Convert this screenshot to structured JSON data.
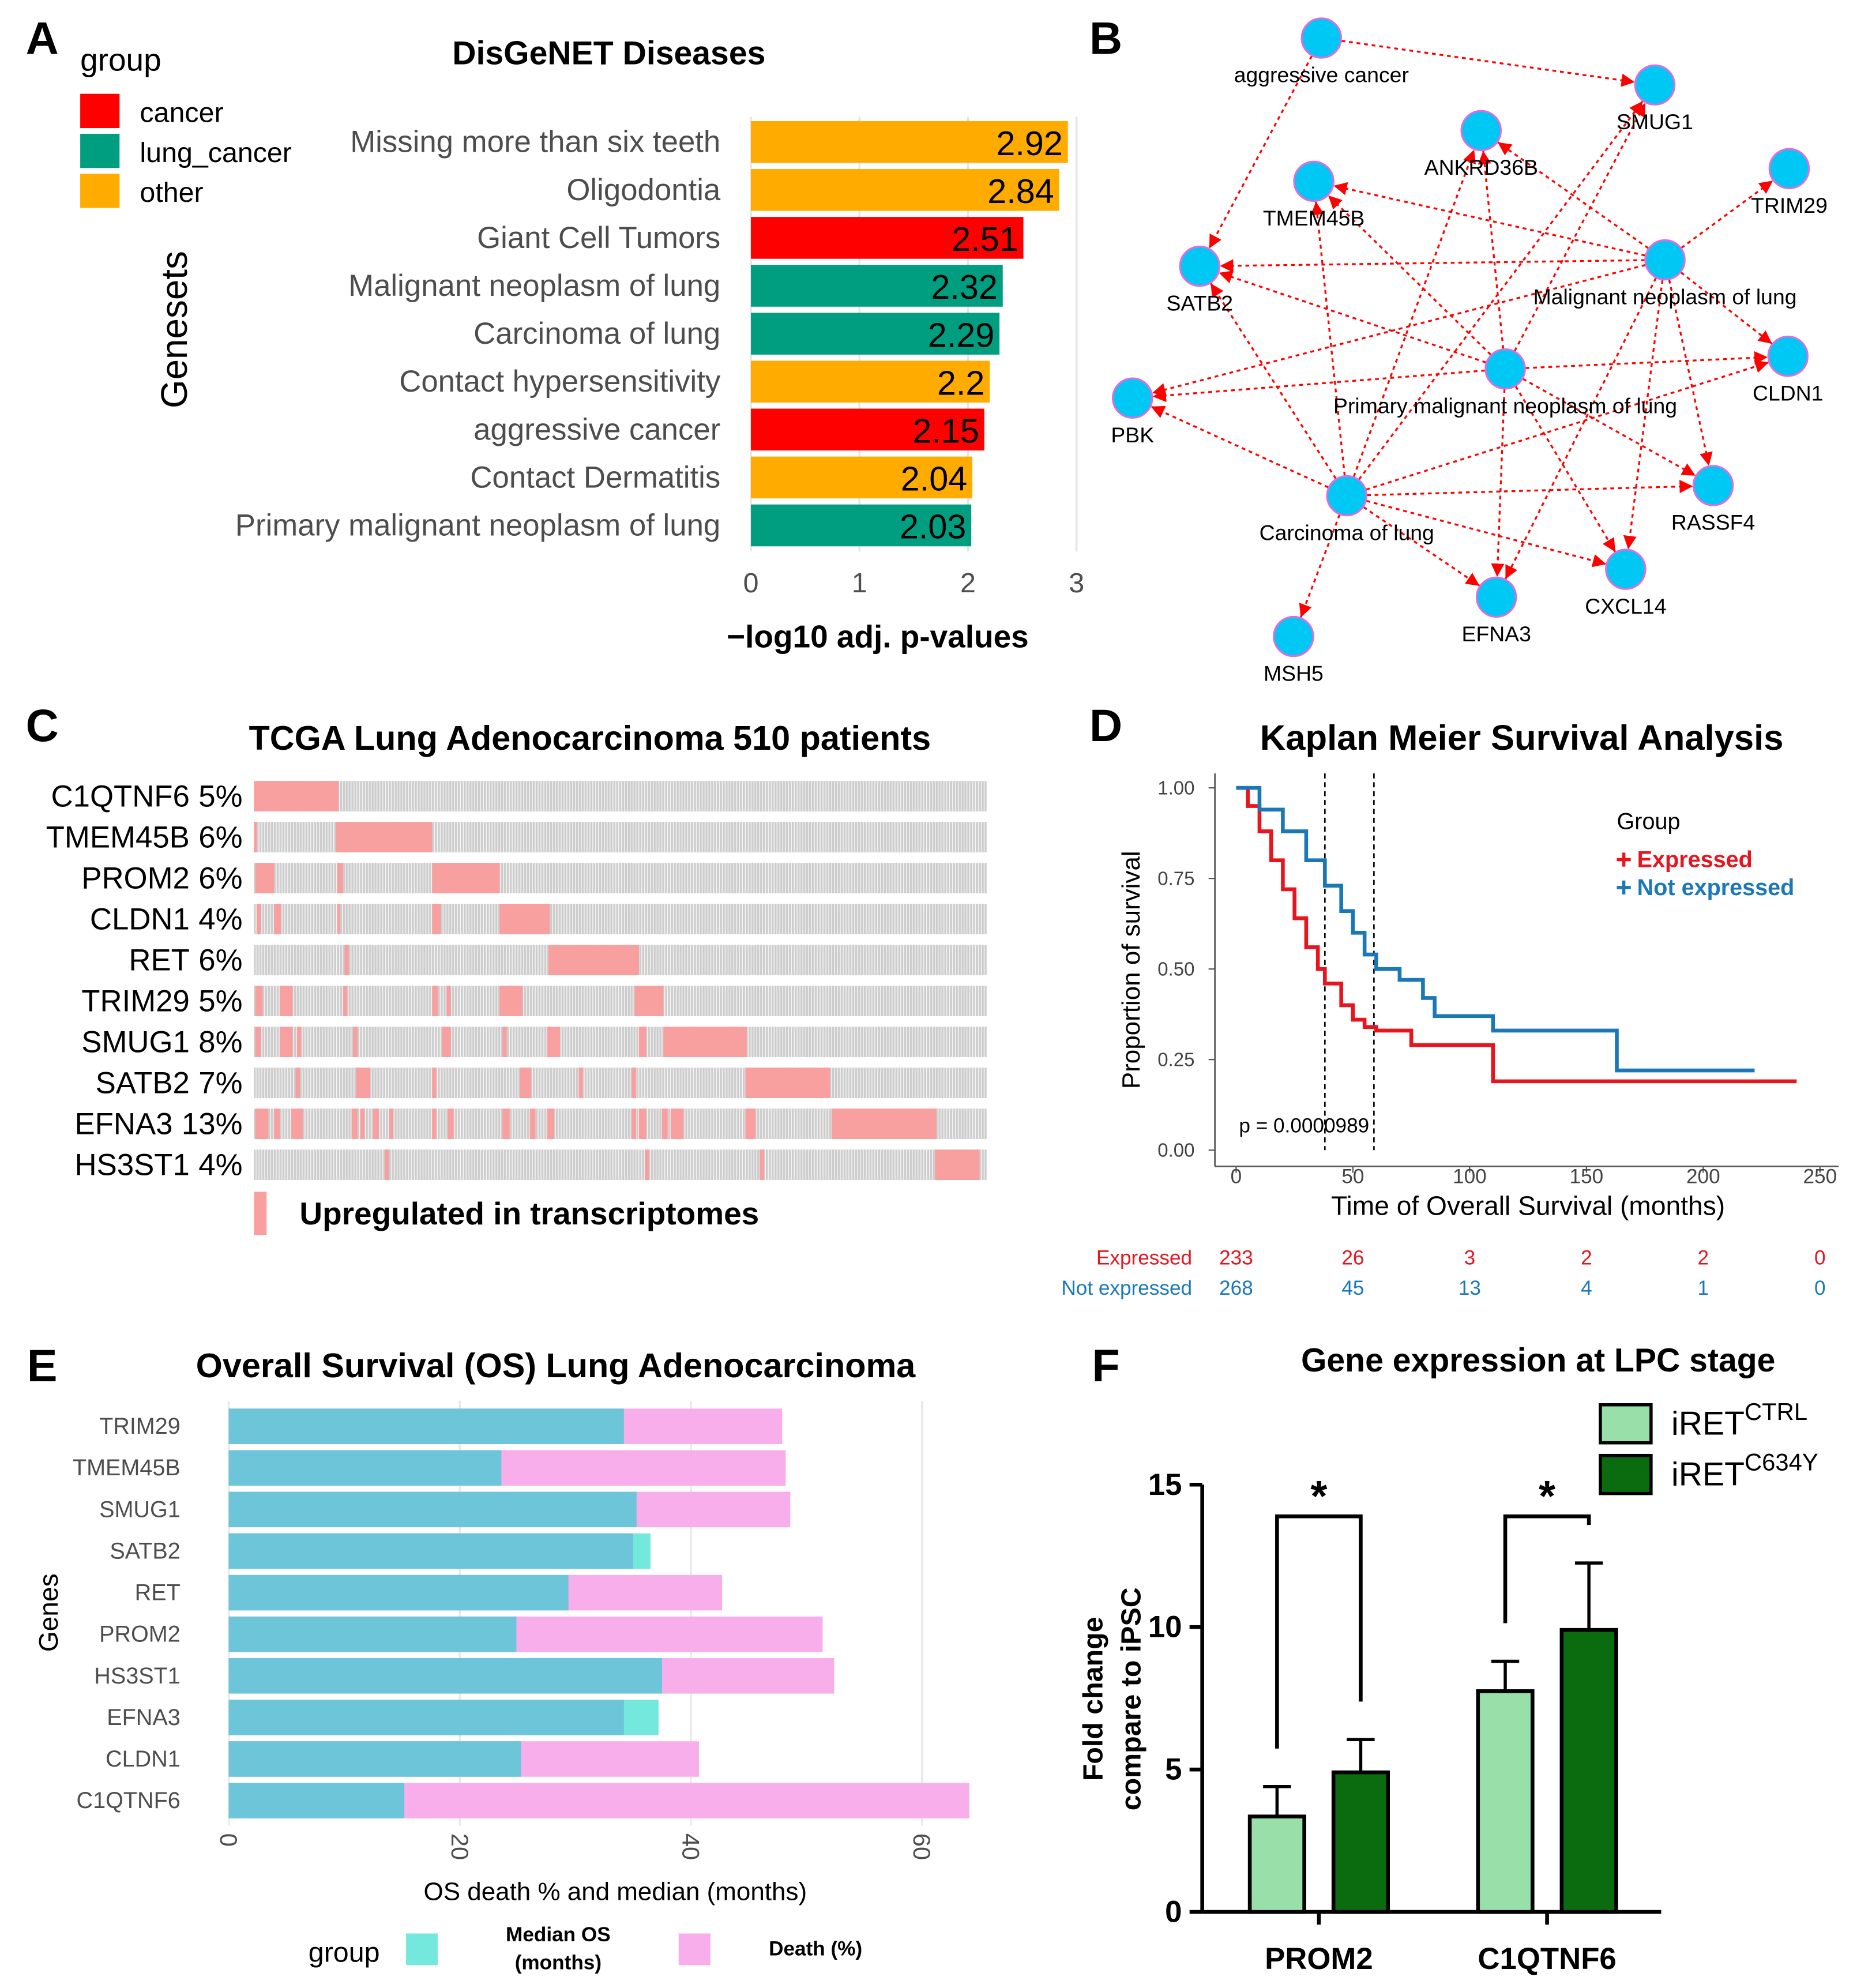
{
  "chart_data": [
    {
      "type": "hbar",
      "panel": "A",
      "title": "DisGeNET Diseases",
      "xlabel": "−log10 adj. p-values",
      "ylabel": "Genesets",
      "legend_title": "group",
      "groups": [
        {
          "name": "cancer",
          "color": "#ff0000"
        },
        {
          "name": "lung_cancer",
          "color": "#009e80"
        },
        {
          "name": "other",
          "color": "#ffab00"
        }
      ],
      "categories": [
        "Missing more than six teeth",
        "Oligodontia",
        "Giant Cell Tumors",
        "Malignant neoplasm of lung",
        "Carcinoma of lung",
        "Contact hypersensitivity",
        "aggressive cancer",
        "Contact Dermatitis",
        "Primary malignant neoplasm of lung"
      ],
      "values": [
        2.92,
        2.84,
        2.51,
        2.32,
        2.29,
        2.2,
        2.15,
        2.04,
        2.03
      ],
      "group": [
        "other",
        "other",
        "cancer",
        "lung_cancer",
        "lung_cancer",
        "other",
        "cancer",
        "other",
        "lung_cancer"
      ],
      "xlim": [
        0,
        3.13
      ],
      "xticks": [
        0,
        1,
        2,
        3
      ],
      "grid": true
    },
    {
      "type": "network",
      "panel": "B",
      "nodes": [
        "aggressive cancer",
        "SMUG1",
        "ANKRD36B",
        "TMEM45B",
        "TRIM29",
        "SATB2",
        "Malignant neoplasm of lung",
        "CLDN1",
        "PBK",
        "Primary malignant neoplasm of lung",
        "RASSF4",
        "Carcinoma of lung",
        "CXCL14",
        "EFNA3",
        "MSH5"
      ],
      "node_color": "#00c8f5",
      "edge_color": "#ff0000"
    },
    {
      "type": "oncoprint",
      "panel": "C",
      "title": "TCGA Lung Adenocarcinoma 510 patients",
      "patients": 510,
      "genes": [
        "C1QTNF6",
        "TMEM45B",
        "PROM2",
        "CLDN1",
        "RET",
        "TRIM29",
        "SMUG1",
        "SATB2",
        "EFNA3",
        "HS3ST1"
      ],
      "values": [
        5,
        6,
        6,
        4,
        6,
        5,
        8,
        7,
        13,
        4
      ],
      "value_labels": [
        "5%",
        "6%",
        "6%",
        "4%",
        "6%",
        "5%",
        "8%",
        "7%",
        "13%",
        "4%"
      ],
      "alterations": [
        [
          [
            0,
            59
          ]
        ],
        [
          [
            0,
            2
          ],
          [
            57,
            124
          ]
        ],
        [
          [
            1,
            14
          ],
          [
            58,
            62
          ],
          [
            124,
            171
          ]
        ],
        [
          [
            2,
            5
          ],
          [
            14,
            19
          ],
          [
            58,
            60
          ],
          [
            124,
            130
          ],
          [
            171,
            206
          ]
        ],
        [
          [
            63,
            66
          ],
          [
            205,
            268
          ]
        ],
        [
          [
            1,
            6
          ],
          [
            18,
            27
          ],
          [
            62,
            65
          ],
          [
            124,
            128
          ],
          [
            134,
            137
          ],
          [
            171,
            187
          ],
          [
            265,
            285
          ]
        ],
        [
          [
            1,
            5
          ],
          [
            18,
            27
          ],
          [
            30,
            33
          ],
          [
            69,
            72
          ],
          [
            131,
            137
          ],
          [
            173,
            176
          ],
          [
            204,
            213
          ],
          [
            268,
            273
          ],
          [
            285,
            343
          ]
        ],
        [
          [
            29,
            32
          ],
          [
            71,
            81
          ],
          [
            124,
            127
          ],
          [
            185,
            193
          ],
          [
            226,
            229
          ],
          [
            263,
            266
          ],
          [
            342,
            401
          ]
        ],
        [
          [
            1,
            10
          ],
          [
            14,
            18
          ],
          [
            26,
            34
          ],
          [
            68,
            72
          ],
          [
            74,
            77
          ],
          [
            83,
            87
          ],
          [
            94,
            97
          ],
          [
            124,
            127
          ],
          [
            135,
            139
          ],
          [
            173,
            178
          ],
          [
            192,
            196
          ],
          [
            204,
            209
          ],
          [
            263,
            266
          ],
          [
            268,
            273
          ],
          [
            284,
            288
          ],
          [
            290,
            299
          ],
          [
            342,
            349
          ],
          [
            402,
            475
          ]
        ],
        [
          [
            91,
            94
          ],
          [
            272,
            275
          ],
          [
            352,
            355
          ],
          [
            474,
            505
          ]
        ]
      ],
      "color": "#f8a0a0",
      "legend": "Upregulated in transcriptomes"
    },
    {
      "type": "km",
      "panel": "D",
      "title": "Kaplan Meier Survival Analysis",
      "xlabel": "Time of Overall Survival (months)",
      "ylabel": "Proportion of survival",
      "legend_title": "Group",
      "annotation": "p = 0.0000989",
      "series": [
        {
          "name": "Expressed",
          "color": "#e8141e",
          "x": [
            0,
            5,
            10,
            15,
            20,
            25,
            30,
            35,
            38,
            45,
            50,
            55,
            60,
            75,
            110,
            240
          ],
          "values": [
            1,
            0.95,
            0.88,
            0.8,
            0.72,
            0.64,
            0.56,
            0.5,
            0.46,
            0.4,
            0.36,
            0.34,
            0.33,
            0.29,
            0.19,
            0.19
          ],
          "at_risk": [
            233,
            26,
            3,
            2,
            2,
            0
          ]
        },
        {
          "name": "Not expressed",
          "color": "#1a78b8",
          "x": [
            0,
            10,
            20,
            30,
            38,
            45,
            50,
            55,
            60,
            70,
            80,
            85,
            110,
            163,
            222
          ],
          "values": [
            1,
            0.94,
            0.88,
            0.8,
            0.73,
            0.66,
            0.6,
            0.54,
            0.5,
            0.47,
            0.42,
            0.37,
            0.33,
            0.22,
            0.22
          ],
          "at_risk": [
            268,
            45,
            13,
            4,
            1,
            0
          ]
        }
      ],
      "vlines": [
        38,
        59
      ],
      "xlim": [
        -8,
        258
      ],
      "xticks": [
        0,
        50,
        100,
        150,
        200,
        250
      ],
      "ylim": [
        -0.045,
        1.04
      ],
      "yticks": [
        {
          "value": 0,
          "label": "0.00"
        },
        {
          "value": 0.25,
          "label": "0.25"
        },
        {
          "value": 0.5,
          "label": "0.50"
        },
        {
          "value": 0.75,
          "label": "0.75"
        },
        {
          "value": 1,
          "label": "1.00"
        }
      ]
    },
    {
      "type": "overlap_hbar",
      "panel": "E",
      "title": "Overall Survival (OS) Lung Adenocarcinoma",
      "xlabel": "OS death % and median (months)",
      "ylabel": "Genes",
      "legend_title": "group",
      "categories": [
        "TRIM29",
        "TMEM45B",
        "SMUG1",
        "SATB2",
        "RET",
        "PROM2",
        "HS3ST1",
        "EFNA3",
        "CLDN1",
        "C1QTNF6"
      ],
      "series": [
        {
          "name": [
            "Median OS",
            "(months)"
          ],
          "color": "#74e8dc",
          "values": [
            34.2,
            23.6,
            35.3,
            36.5,
            29.4,
            24.9,
            37.5,
            37.2,
            25.3,
            15.2
          ]
        },
        {
          "name": [
            "Death (%)"
          ],
          "color": "#f9aeec",
          "values": [
            47.9,
            48.2,
            48.6,
            35.0,
            42.7,
            51.4,
            52.4,
            34.2,
            40.7,
            64.1
          ]
        }
      ],
      "overlap_color": "#6cc5d9",
      "xlim": [
        -1,
        65.6
      ],
      "xticks": [
        0,
        20,
        40,
        60
      ],
      "grid": true
    },
    {
      "type": "grouped_bar",
      "panel": "F",
      "title": "Gene expression at LPC stage",
      "ylabel": [
        "Fold change",
        "compare to iPSC"
      ],
      "categories": [
        "PROM2",
        "C1QTNF6"
      ],
      "series": [
        {
          "name": "iRET",
          "name_sup": "CTRL",
          "color": "#98dfaa",
          "values": [
            3.35,
            7.75
          ],
          "errors": [
            1.05,
            1.05
          ]
        },
        {
          "name": "iRET",
          "name_sup": "C634Y",
          "color": "#0b6b0f",
          "values": [
            4.9,
            9.9
          ],
          "errors": [
            1.15,
            2.35
          ]
        }
      ],
      "significance": [
        "*",
        "*"
      ],
      "ylim": [
        0,
        15
      ],
      "yticks": [
        0,
        5,
        10,
        15
      ]
    }
  ]
}
